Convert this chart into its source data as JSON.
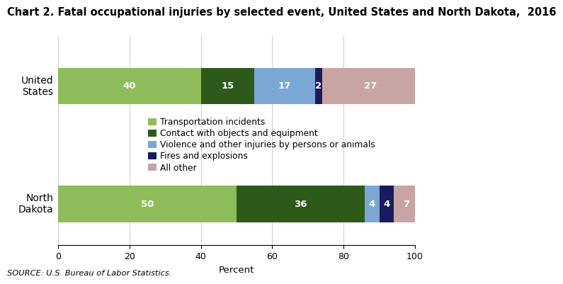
{
  "title": "Chart 2. Fatal occupational injuries by selected event, United States and North Dakota,  2016",
  "categories": [
    "United\nStates",
    "North\nDakota"
  ],
  "series": [
    {
      "label": "Transportation incidents",
      "color": "#8fbc5a",
      "values": [
        40,
        50
      ]
    },
    {
      "label": "Contact with objects and equipment",
      "color": "#2d5a1b",
      "values": [
        15,
        36
      ]
    },
    {
      "label": "Violence and other injuries by persons or animals",
      "color": "#7ba7d4",
      "values": [
        17,
        4
      ]
    },
    {
      "label": "Fires and explosions",
      "color": "#1a1a5e",
      "values": [
        2,
        4
      ]
    },
    {
      "label": "All other",
      "color": "#c9a4a4",
      "values": [
        27,
        7
      ]
    }
  ],
  "xlim": [
    0,
    100
  ],
  "xticks": [
    0,
    20,
    40,
    60,
    80,
    100
  ],
  "xlabel": "Percent",
  "source": "SOURCE: U.S. Bureau of Labor Statistics.",
  "bar_height": 0.62,
  "label_color": "#ffffff",
  "label_fontsize": 9.5,
  "title_fontsize": 10.5,
  "axis_fontsize": 9,
  "legend_fontsize": 8.8,
  "y_us": 2.0,
  "y_nd": 0.0,
  "ylim": [
    -0.7,
    2.85
  ]
}
